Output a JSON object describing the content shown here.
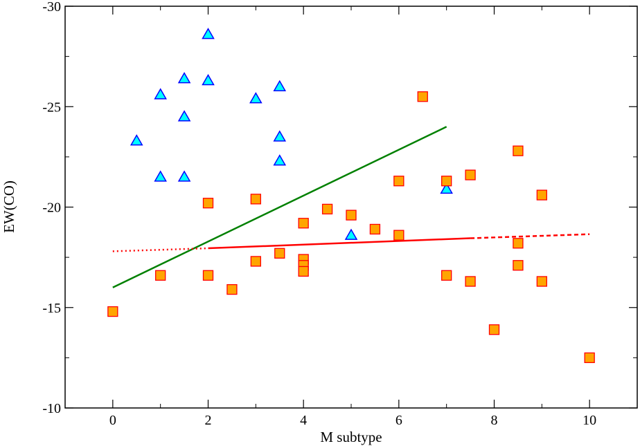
{
  "chart_data": {
    "type": "scatter",
    "title": "",
    "xlabel": "M subtype",
    "ylabel": "EW(CO)",
    "xlim": [
      -1,
      11
    ],
    "ylim": [
      -10,
      -30
    ],
    "y_inverted": true,
    "grid": false,
    "legend": "none",
    "x_ticks": [
      0,
      2,
      4,
      6,
      8,
      10
    ],
    "x_tick_labels": [
      "0",
      "2",
      "4",
      "6",
      "8",
      "10"
    ],
    "x_minor_ticks": [
      1,
      3,
      5,
      7,
      9
    ],
    "y_ticks": [
      -10,
      -15,
      -20,
      -25,
      -30
    ],
    "y_tick_labels": [
      "-10",
      "-15",
      "-20",
      "-25",
      "-30"
    ],
    "y_minor_ticks": [
      -12.5,
      -17.5,
      -22.5,
      -27.5
    ],
    "series": [
      {
        "name": "triangles",
        "marker": "triangle",
        "color": "#00ffff",
        "edge_color": "#0000ff",
        "points": [
          [
            0.5,
            -23.3
          ],
          [
            1.0,
            -25.6
          ],
          [
            1.0,
            -21.5
          ],
          [
            1.5,
            -26.4
          ],
          [
            1.5,
            -24.5
          ],
          [
            1.5,
            -21.5
          ],
          [
            2.0,
            -28.6
          ],
          [
            2.0,
            -26.3
          ],
          [
            3.0,
            -25.4
          ],
          [
            3.5,
            -26.0
          ],
          [
            3.5,
            -23.5
          ],
          [
            3.5,
            -22.3
          ],
          [
            5.0,
            -18.6
          ],
          [
            7.0,
            -20.9
          ]
        ]
      },
      {
        "name": "squares",
        "marker": "square",
        "color": "#ffa500",
        "edge_color": "#ff0000",
        "points": [
          [
            0.0,
            -14.8
          ],
          [
            1.0,
            -16.6
          ],
          [
            2.0,
            -20.2
          ],
          [
            2.0,
            -16.6
          ],
          [
            2.5,
            -15.9
          ],
          [
            3.0,
            -20.4
          ],
          [
            3.0,
            -17.3
          ],
          [
            3.5,
            -17.7
          ],
          [
            4.0,
            -19.2
          ],
          [
            4.0,
            -17.4
          ],
          [
            4.0,
            -17.1
          ],
          [
            4.0,
            -16.8
          ],
          [
            4.5,
            -19.9
          ],
          [
            5.0,
            -19.6
          ],
          [
            5.5,
            -18.9
          ],
          [
            6.0,
            -21.3
          ],
          [
            6.0,
            -18.6
          ],
          [
            6.5,
            -25.5
          ],
          [
            7.0,
            -21.3
          ],
          [
            7.0,
            -16.6
          ],
          [
            7.5,
            -21.6
          ],
          [
            7.5,
            -16.3
          ],
          [
            8.0,
            -13.9
          ],
          [
            8.5,
            -22.8
          ],
          [
            8.5,
            -18.2
          ],
          [
            8.5,
            -17.1
          ],
          [
            9.0,
            -20.6
          ],
          [
            9.0,
            -16.3
          ],
          [
            10.0,
            -12.5
          ]
        ]
      }
    ],
    "lines": [
      {
        "name": "green-fit",
        "color": "#008000",
        "style": "solid",
        "points": [
          [
            0,
            -16.0
          ],
          [
            7,
            -24.0
          ]
        ]
      },
      {
        "name": "red-fit-dotted",
        "color": "#ff0000",
        "style": "dotted",
        "points": [
          [
            0,
            -17.8
          ],
          [
            2,
            -17.95
          ]
        ]
      },
      {
        "name": "red-fit-solid",
        "color": "#ff0000",
        "style": "solid",
        "points": [
          [
            2,
            -17.95
          ],
          [
            7.5,
            -18.45
          ]
        ]
      },
      {
        "name": "red-fit-dashed",
        "color": "#ff0000",
        "style": "dashed",
        "points": [
          [
            7.5,
            -18.45
          ],
          [
            10,
            -18.65
          ]
        ]
      }
    ]
  }
}
